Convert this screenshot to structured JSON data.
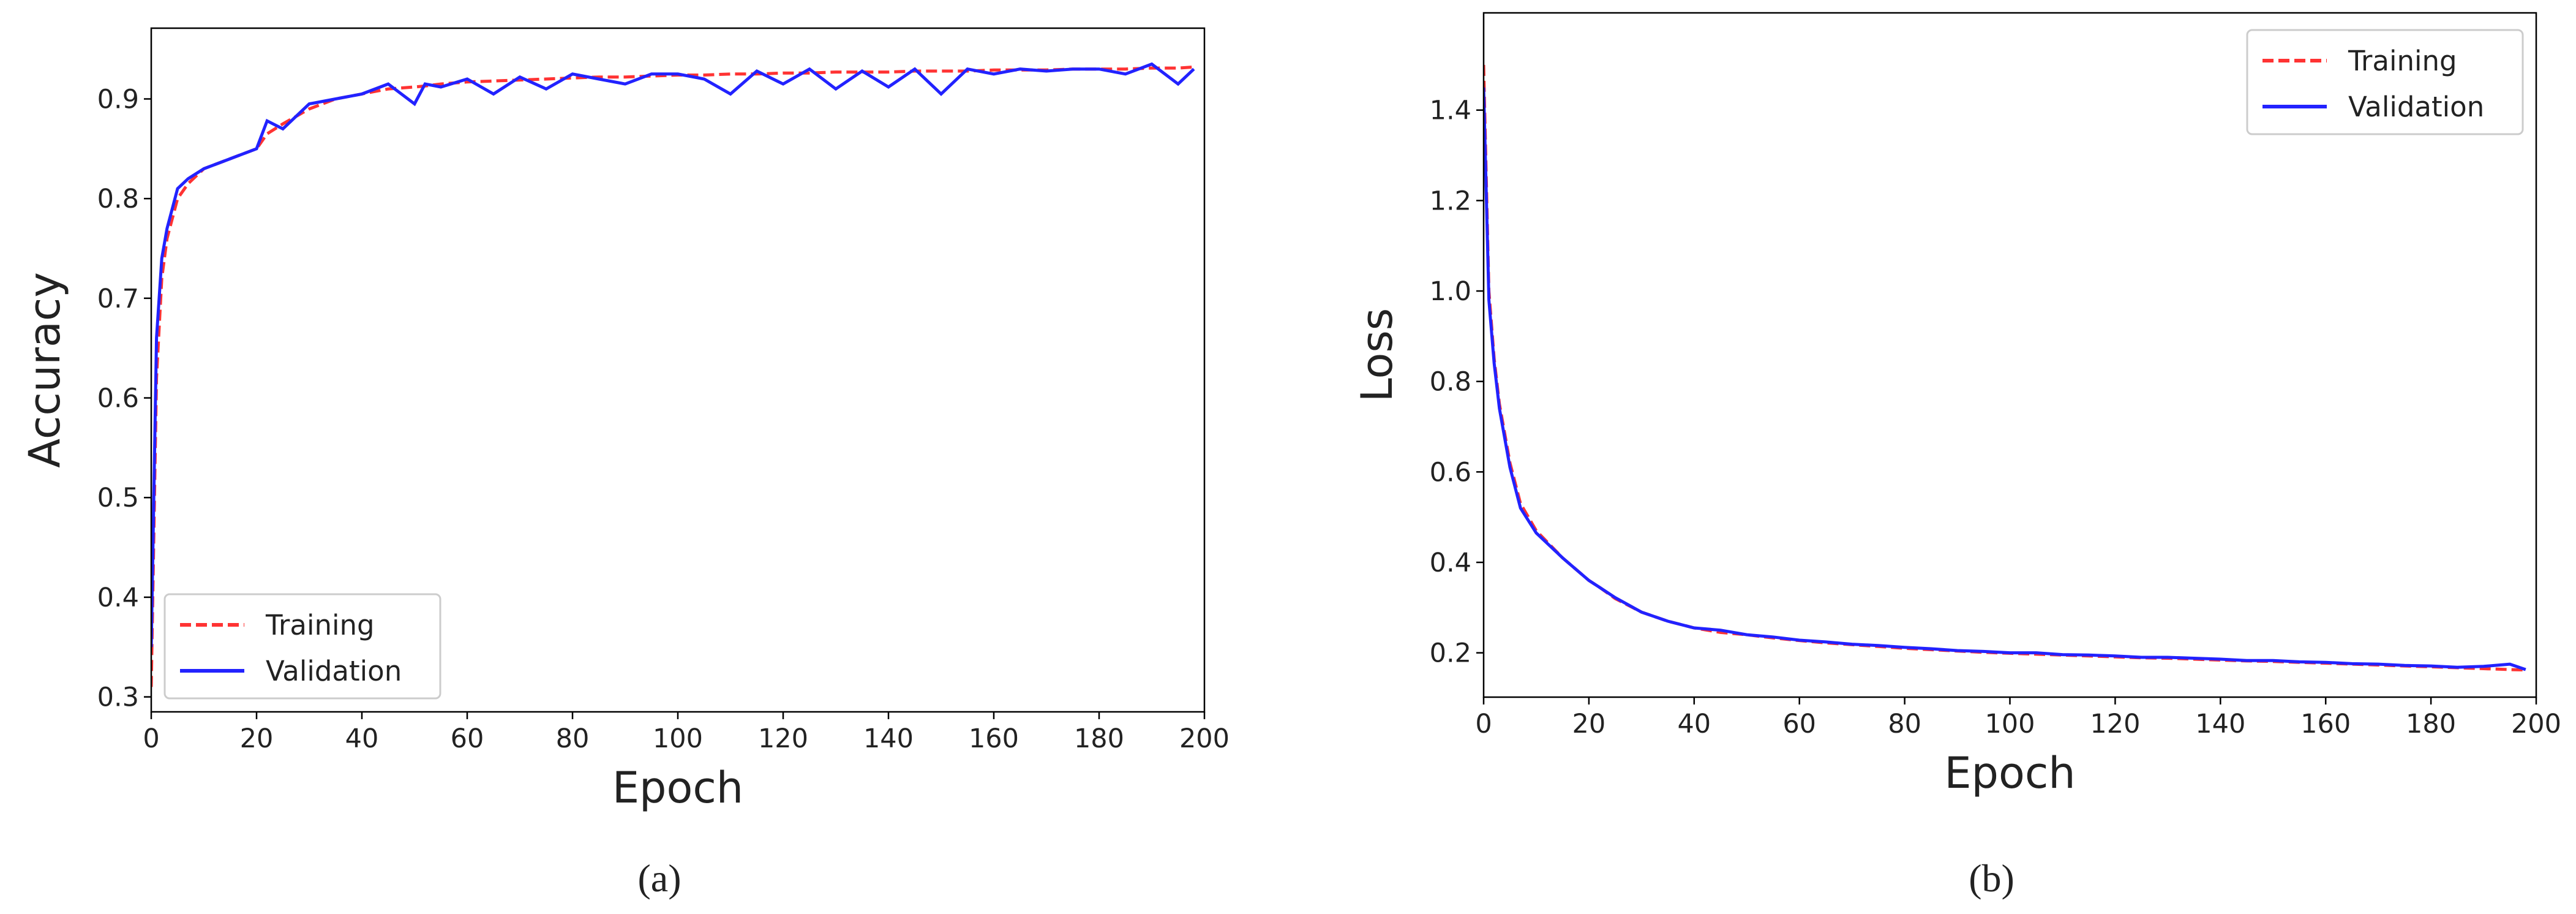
{
  "chart_data": [
    {
      "type": "line",
      "caption": "(a)",
      "xlabel": "Epoch",
      "ylabel": "Accuracy",
      "legend": "lower left",
      "xlim": [
        0,
        200
      ],
      "xticks": [
        0,
        20,
        40,
        60,
        80,
        100,
        120,
        140,
        160,
        180,
        200
      ],
      "ylim": [
        0.285,
        0.971
      ],
      "yticks": [
        0.3,
        0.4,
        0.5,
        0.6,
        0.7,
        0.8,
        0.9
      ],
      "x": [
        0,
        1,
        2,
        3,
        5,
        7,
        10,
        15,
        20,
        22,
        25,
        30,
        35,
        40,
        45,
        50,
        52,
        55,
        60,
        65,
        70,
        75,
        80,
        85,
        90,
        95,
        100,
        105,
        110,
        115,
        120,
        125,
        130,
        135,
        140,
        145,
        150,
        155,
        160,
        165,
        170,
        175,
        180,
        185,
        190,
        195,
        198
      ],
      "series": [
        {
          "name": "Training",
          "color": "#ff3333",
          "linestyle": "dashed",
          "values": [
            0.31,
            0.62,
            0.72,
            0.76,
            0.8,
            0.815,
            0.83,
            0.84,
            0.85,
            0.865,
            0.875,
            0.89,
            0.9,
            0.905,
            0.91,
            0.912,
            0.913,
            0.915,
            0.917,
            0.918,
            0.919,
            0.92,
            0.921,
            0.922,
            0.922,
            0.923,
            0.924,
            0.924,
            0.925,
            0.925,
            0.926,
            0.926,
            0.927,
            0.927,
            0.927,
            0.928,
            0.928,
            0.928,
            0.929,
            0.929,
            0.929,
            0.93,
            0.93,
            0.93,
            0.931,
            0.931,
            0.932
          ]
        },
        {
          "name": "Validation",
          "color": "#2222ff",
          "linestyle": "solid",
          "values": [
            0.35,
            0.66,
            0.74,
            0.77,
            0.81,
            0.82,
            0.83,
            0.84,
            0.85,
            0.878,
            0.87,
            0.895,
            0.9,
            0.905,
            0.915,
            0.895,
            0.915,
            0.912,
            0.92,
            0.905,
            0.922,
            0.91,
            0.925,
            0.92,
            0.915,
            0.925,
            0.925,
            0.92,
            0.905,
            0.928,
            0.915,
            0.93,
            0.91,
            0.928,
            0.912,
            0.93,
            0.905,
            0.93,
            0.925,
            0.93,
            0.928,
            0.93,
            0.93,
            0.925,
            0.935,
            0.915,
            0.93
          ]
        }
      ]
    },
    {
      "type": "line",
      "caption": "(b)",
      "xlabel": "Epoch",
      "ylabel": "Loss",
      "legend": "upper right",
      "xlim": [
        0,
        200
      ],
      "xticks": [
        0,
        20,
        40,
        60,
        80,
        100,
        120,
        140,
        160,
        180,
        200
      ],
      "ylim": [
        0.102,
        1.615
      ],
      "yticks": [
        0.2,
        0.4,
        0.6,
        0.8,
        {
          "value": 1,
          "label": "1.0"
        },
        1.2,
        1.4
      ],
      "x": [
        0,
        1,
        2,
        3,
        5,
        7,
        10,
        15,
        20,
        22,
        25,
        30,
        35,
        40,
        45,
        50,
        52,
        55,
        60,
        65,
        70,
        75,
        80,
        85,
        90,
        95,
        100,
        105,
        110,
        115,
        120,
        125,
        130,
        135,
        140,
        145,
        150,
        155,
        160,
        165,
        170,
        175,
        180,
        185,
        190,
        195,
        198
      ],
      "series": [
        {
          "name": "Training",
          "color": "#ff3333",
          "linestyle": "dashed",
          "values": [
            1.5,
            1.0,
            0.85,
            0.75,
            0.62,
            0.53,
            0.47,
            0.41,
            0.36,
            0.345,
            0.32,
            0.29,
            0.27,
            0.255,
            0.245,
            0.24,
            0.237,
            0.233,
            0.227,
            0.222,
            0.218,
            0.214,
            0.21,
            0.207,
            0.204,
            0.201,
            0.199,
            0.197,
            0.195,
            0.193,
            0.191,
            0.189,
            0.188,
            0.186,
            0.184,
            0.182,
            0.181,
            0.179,
            0.177,
            0.175,
            0.173,
            0.171,
            0.169,
            0.167,
            0.165,
            0.163,
            0.162
          ]
        },
        {
          "name": "Validation",
          "color": "#2222ff",
          "linestyle": "solid",
          "values": [
            1.45,
            0.98,
            0.84,
            0.74,
            0.61,
            0.52,
            0.465,
            0.41,
            0.36,
            0.345,
            0.322,
            0.29,
            0.27,
            0.255,
            0.25,
            0.24,
            0.238,
            0.235,
            0.228,
            0.224,
            0.219,
            0.216,
            0.212,
            0.209,
            0.205,
            0.203,
            0.2,
            0.2,
            0.196,
            0.195,
            0.193,
            0.19,
            0.19,
            0.188,
            0.186,
            0.183,
            0.183,
            0.18,
            0.179,
            0.176,
            0.175,
            0.172,
            0.171,
            0.168,
            0.17,
            0.175,
            0.163
          ]
        }
      ]
    }
  ]
}
